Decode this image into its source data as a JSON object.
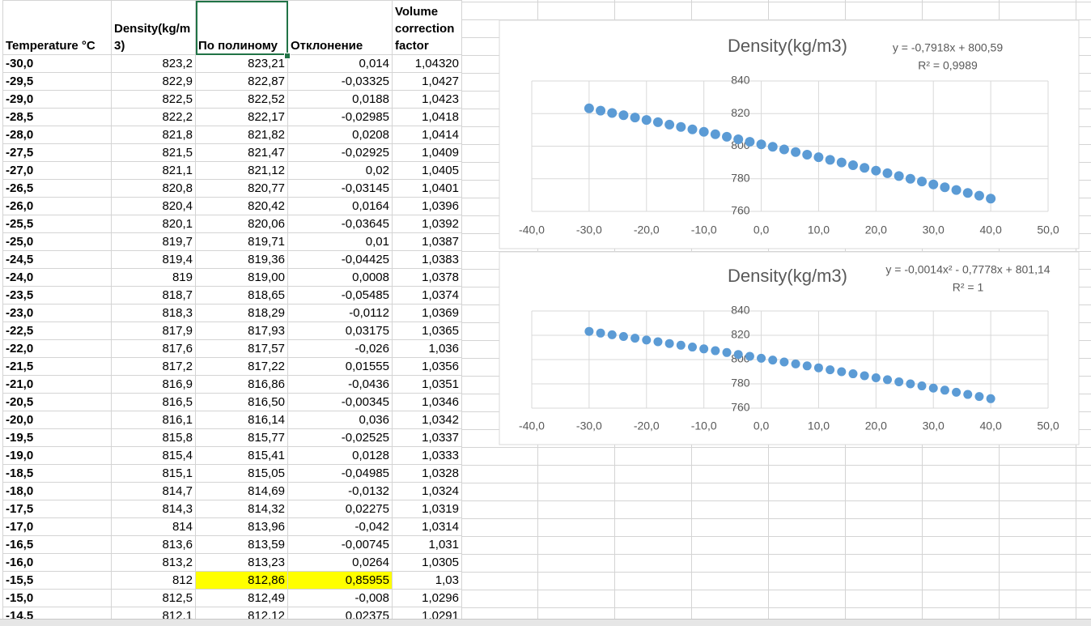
{
  "table": {
    "header": [
      "Temperature °C",
      "Density(kg/m3)",
      "По полиному",
      "Отклонение",
      "Volume correction factor"
    ],
    "rows": [
      [
        "-30,0",
        "823,2",
        "823,21",
        "0,014",
        "1,04320"
      ],
      [
        "-29,5",
        "822,9",
        "822,87",
        "-0,03325",
        "1,0427"
      ],
      [
        "-29,0",
        "822,5",
        "822,52",
        "0,0188",
        "1,0423"
      ],
      [
        "-28,5",
        "822,2",
        "822,17",
        "-0,02985",
        "1,0418"
      ],
      [
        "-28,0",
        "821,8",
        "821,82",
        "0,0208",
        "1,0414"
      ],
      [
        "-27,5",
        "821,5",
        "821,47",
        "-0,02925",
        "1,0409"
      ],
      [
        "-27,0",
        "821,1",
        "821,12",
        "0,02",
        "1,0405"
      ],
      [
        "-26,5",
        "820,8",
        "820,77",
        "-0,03145",
        "1,0401"
      ],
      [
        "-26,0",
        "820,4",
        "820,42",
        "0,0164",
        "1,0396"
      ],
      [
        "-25,5",
        "820,1",
        "820,06",
        "-0,03645",
        "1,0392"
      ],
      [
        "-25,0",
        "819,7",
        "819,71",
        "0,01",
        "1,0387"
      ],
      [
        "-24,5",
        "819,4",
        "819,36",
        "-0,04425",
        "1,0383"
      ],
      [
        "-24,0",
        "819",
        "819,00",
        "0,0008",
        "1,0378"
      ],
      [
        "-23,5",
        "818,7",
        "818,65",
        "-0,05485",
        "1,0374"
      ],
      [
        "-23,0",
        "818,3",
        "818,29",
        "-0,0112",
        "1,0369"
      ],
      [
        "-22,5",
        "817,9",
        "817,93",
        "0,03175",
        "1,0365"
      ],
      [
        "-22,0",
        "817,6",
        "817,57",
        "-0,026",
        "1,036"
      ],
      [
        "-21,5",
        "817,2",
        "817,22",
        "0,01555",
        "1,0356"
      ],
      [
        "-21,0",
        "816,9",
        "816,86",
        "-0,0436",
        "1,0351"
      ],
      [
        "-20,5",
        "816,5",
        "816,50",
        "-0,00345",
        "1,0346"
      ],
      [
        "-20,0",
        "816,1",
        "816,14",
        "0,036",
        "1,0342"
      ],
      [
        "-19,5",
        "815,8",
        "815,77",
        "-0,02525",
        "1,0337"
      ],
      [
        "-19,0",
        "815,4",
        "815,41",
        "0,0128",
        "1,0333"
      ],
      [
        "-18,5",
        "815,1",
        "815,05",
        "-0,04985",
        "1,0328"
      ],
      [
        "-18,0",
        "814,7",
        "814,69",
        "-0,0132",
        "1,0324"
      ],
      [
        "-17,5",
        "814,3",
        "814,32",
        "0,02275",
        "1,0319"
      ],
      [
        "-17,0",
        "814",
        "813,96",
        "-0,042",
        "1,0314"
      ],
      [
        "-16,5",
        "813,6",
        "813,59",
        "-0,00745",
        "1,031"
      ],
      [
        "-16,0",
        "813,2",
        "813,23",
        "0,0264",
        "1,0305"
      ],
      [
        "-15,5",
        "812",
        "812,86",
        "0,85955",
        "1,03"
      ],
      [
        "-15,0",
        "812,5",
        "812,49",
        "-0,008",
        "1,0296"
      ],
      [
        "-14,5",
        "812,1",
        "812,12",
        "0,02375",
        "1,0291"
      ]
    ]
  },
  "chart_data": [
    {
      "type": "scatter",
      "title": "Density(kg/m3)",
      "annotations": [
        "y = -0,7918x + 800,59",
        "R² = 0,9989"
      ],
      "color": "#5b9bd5",
      "grid": true,
      "x": [
        -30,
        -28,
        -26,
        -24,
        -22,
        -20,
        -18,
        -16,
        -14,
        -12,
        -10,
        -8,
        -6,
        -4,
        -2,
        0,
        2,
        4,
        6,
        8,
        10,
        12,
        14,
        16,
        18,
        20,
        22,
        24,
        26,
        28,
        30,
        32,
        34,
        36,
        38,
        40
      ],
      "values": [
        823.2,
        821.8,
        820.4,
        819,
        817.6,
        816.1,
        814.7,
        813.2,
        811.8,
        810.3,
        808.8,
        807.3,
        805.8,
        804.2,
        802.7,
        801.1,
        799.6,
        798.0,
        796.4,
        794.8,
        793.2,
        791.6,
        790.0,
        788.3,
        786.7,
        785.0,
        783.4,
        781.7,
        780.0,
        778.3,
        776.5,
        774.8,
        773.1,
        771.3,
        769.6,
        767.8
      ],
      "xlim": [
        -40,
        50
      ],
      "xticks": [
        {
          "value": -40,
          "label": "-40,0"
        },
        {
          "value": -30,
          "label": "-30,0"
        },
        {
          "value": -20,
          "label": "-20,0"
        },
        {
          "value": -10,
          "label": "-10,0"
        },
        {
          "value": 0,
          "label": "0,0"
        },
        {
          "value": 10,
          "label": "10,0"
        },
        {
          "value": 20,
          "label": "20,0"
        },
        {
          "value": 30,
          "label": "30,0"
        },
        {
          "value": 40,
          "label": "40,0"
        },
        {
          "value": 50,
          "label": "50,0"
        }
      ],
      "ylim": [
        760,
        840
      ],
      "yticks": [
        760,
        780,
        800,
        820,
        840
      ]
    },
    {
      "type": "scatter",
      "title": "Density(kg/m3)",
      "annotations": [
        "y = -0,0014x² - 0,7778x + 801,14",
        "R² = 1"
      ],
      "color": "#5b9bd5",
      "grid": true,
      "x": [
        -30,
        -28,
        -26,
        -24,
        -22,
        -20,
        -18,
        -16,
        -14,
        -12,
        -10,
        -8,
        -6,
        -4,
        -2,
        0,
        2,
        4,
        6,
        8,
        10,
        12,
        14,
        16,
        18,
        20,
        22,
        24,
        26,
        28,
        30,
        32,
        34,
        36,
        38,
        40
      ],
      "values": [
        823.2,
        821.8,
        820.4,
        819,
        817.6,
        816.1,
        814.7,
        813.2,
        811.8,
        810.3,
        808.8,
        807.3,
        805.8,
        804.2,
        802.7,
        801.1,
        799.6,
        798.0,
        796.4,
        794.8,
        793.2,
        791.6,
        790.0,
        788.3,
        786.7,
        785.0,
        783.4,
        781.7,
        780.0,
        778.3,
        776.5,
        774.8,
        773.1,
        771.3,
        769.6,
        767.8
      ],
      "xlim": [
        -40,
        50
      ],
      "xticks": [
        {
          "value": -40,
          "label": "-40,0"
        },
        {
          "value": -30,
          "label": "-30,0"
        },
        {
          "value": -20,
          "label": "-20,0"
        },
        {
          "value": -10,
          "label": "-10,0"
        },
        {
          "value": 0,
          "label": "0,0"
        },
        {
          "value": 10,
          "label": "10,0"
        },
        {
          "value": 20,
          "label": "20,0"
        },
        {
          "value": 30,
          "label": "30,0"
        },
        {
          "value": 40,
          "label": "40,0"
        },
        {
          "value": 50,
          "label": "50,0"
        }
      ],
      "ylim": [
        760,
        840
      ],
      "yticks": [
        760,
        780,
        800,
        820,
        840
      ]
    }
  ]
}
